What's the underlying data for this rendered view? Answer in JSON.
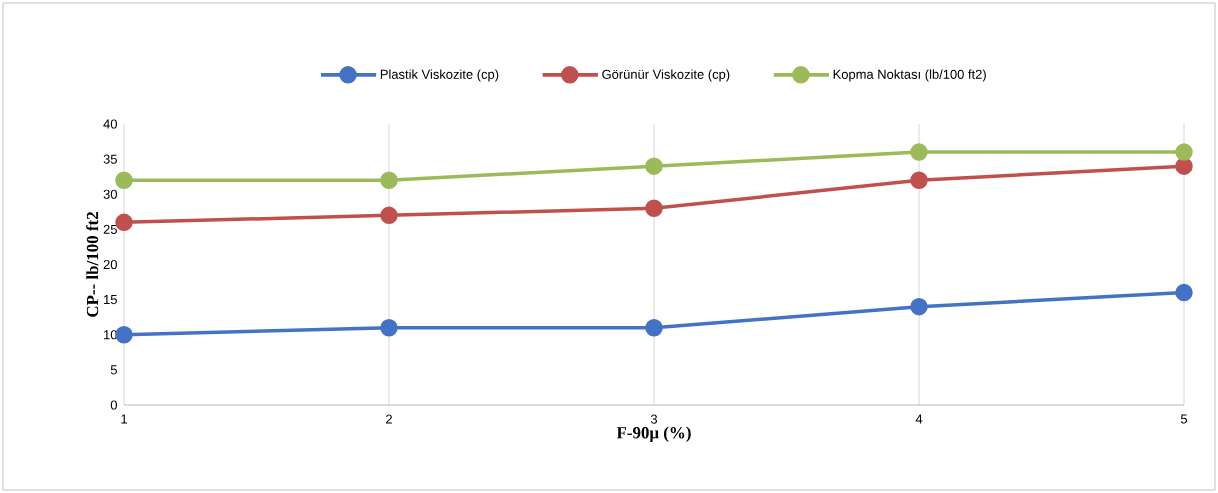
{
  "chart_data": {
    "type": "line",
    "xlabel": "F-90μ (%)",
    "ylabel": "CP-- lb/100 ft2",
    "x": [
      1,
      2,
      3,
      4,
      5
    ],
    "xlim": [
      1,
      5
    ],
    "xticks": [
      1,
      2,
      3,
      4,
      5
    ],
    "ylim": [
      0,
      40
    ],
    "yticks": [
      0,
      5,
      10,
      15,
      20,
      25,
      30,
      35,
      40
    ],
    "grid": "x",
    "legend": "top",
    "marker": "circle",
    "line_style": "solid",
    "series": [
      {
        "name": "Plastik Viskozite (cp)",
        "color": "#4472c4",
        "values": [
          10,
          11,
          11,
          14,
          16
        ]
      },
      {
        "name": "Görünür Viskozite (cp)",
        "color": "#c0504d",
        "values": [
          26,
          27,
          28,
          32,
          34
        ]
      },
      {
        "name": "Kopma Noktası (lb/100 ft2)",
        "color": "#9bbb59",
        "values": [
          32,
          32,
          34,
          36,
          36
        ]
      }
    ]
  }
}
